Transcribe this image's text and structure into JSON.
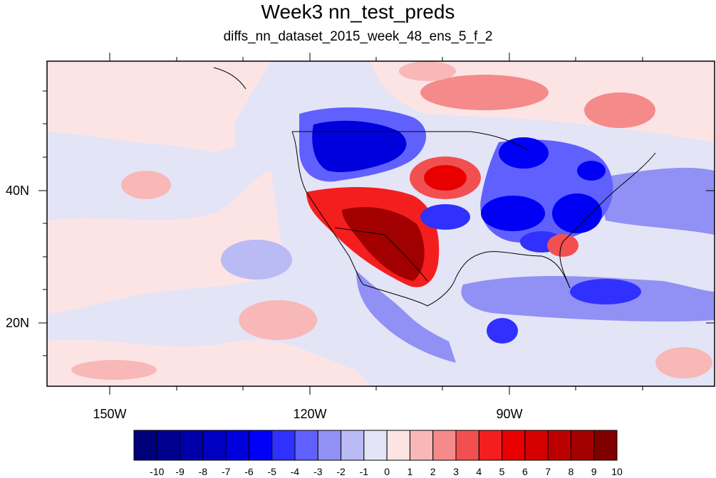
{
  "title": "Week3 nn_test_preds",
  "subtitle": "diffs_nn_dataset_2015_week_48_ens_5_f_2",
  "lat_ticks": [
    {
      "value": 40,
      "label": "40N"
    },
    {
      "value": 20,
      "label": "20N"
    }
  ],
  "lon_ticks": [
    {
      "value": -150,
      "label": "150W"
    },
    {
      "value": -120,
      "label": "120W"
    },
    {
      "value": -90,
      "label": "90W"
    }
  ],
  "map_extent": {
    "lon_min": -159.5,
    "lon_max": -61,
    "lat_min": 11,
    "lat_max": 60
  },
  "colorbar": {
    "labels": [
      "-10",
      "-9",
      "-8",
      "-7",
      "-6",
      "-5",
      "-4",
      "-3",
      "-2",
      "-1",
      "0",
      "1",
      "2",
      "3",
      "4",
      "5",
      "6",
      "7",
      "8",
      "9",
      "10"
    ],
    "colors": [
      "#00007a",
      "#00008f",
      "#0000a8",
      "#0000c2",
      "#0000dc",
      "#0000f5",
      "#3030ff",
      "#6060ff",
      "#9090f5",
      "#babaf5",
      "#e4e4f7",
      "#fde4e4",
      "#f8b8b8",
      "#f58a8a",
      "#f25050",
      "#f41e1e",
      "#e80000",
      "#d40000",
      "#bc0000",
      "#a20000",
      "#800000"
    ]
  }
}
